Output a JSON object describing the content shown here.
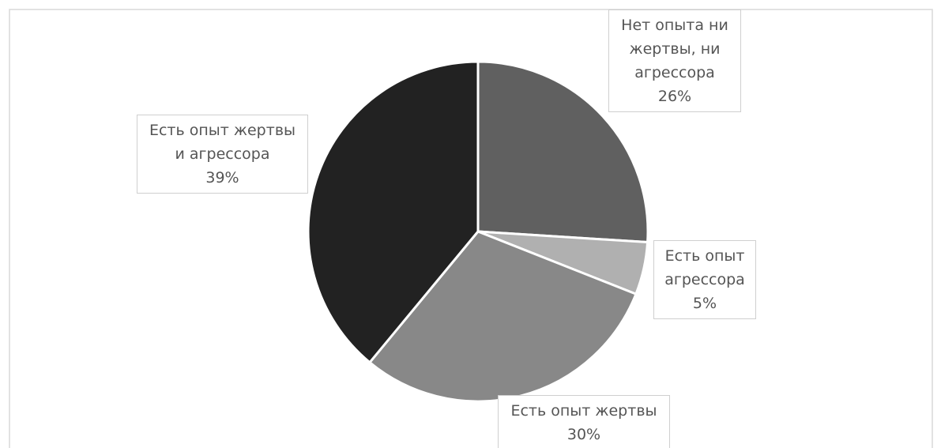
{
  "chart_data": {
    "type": "pie",
    "categories": [
      "Нет опыта ни жертвы, ни агрессора",
      "Есть опыт агрессора",
      "Есть опыт жертвы",
      "Есть опыт жертвы и агрессора"
    ],
    "values": [
      26,
      5,
      30,
      39
    ],
    "value_labels": [
      "26%",
      "5%",
      "30%",
      "39%"
    ],
    "colors": [
      "#606060",
      "#b0b0b0",
      "#888888",
      "#222222"
    ]
  }
}
